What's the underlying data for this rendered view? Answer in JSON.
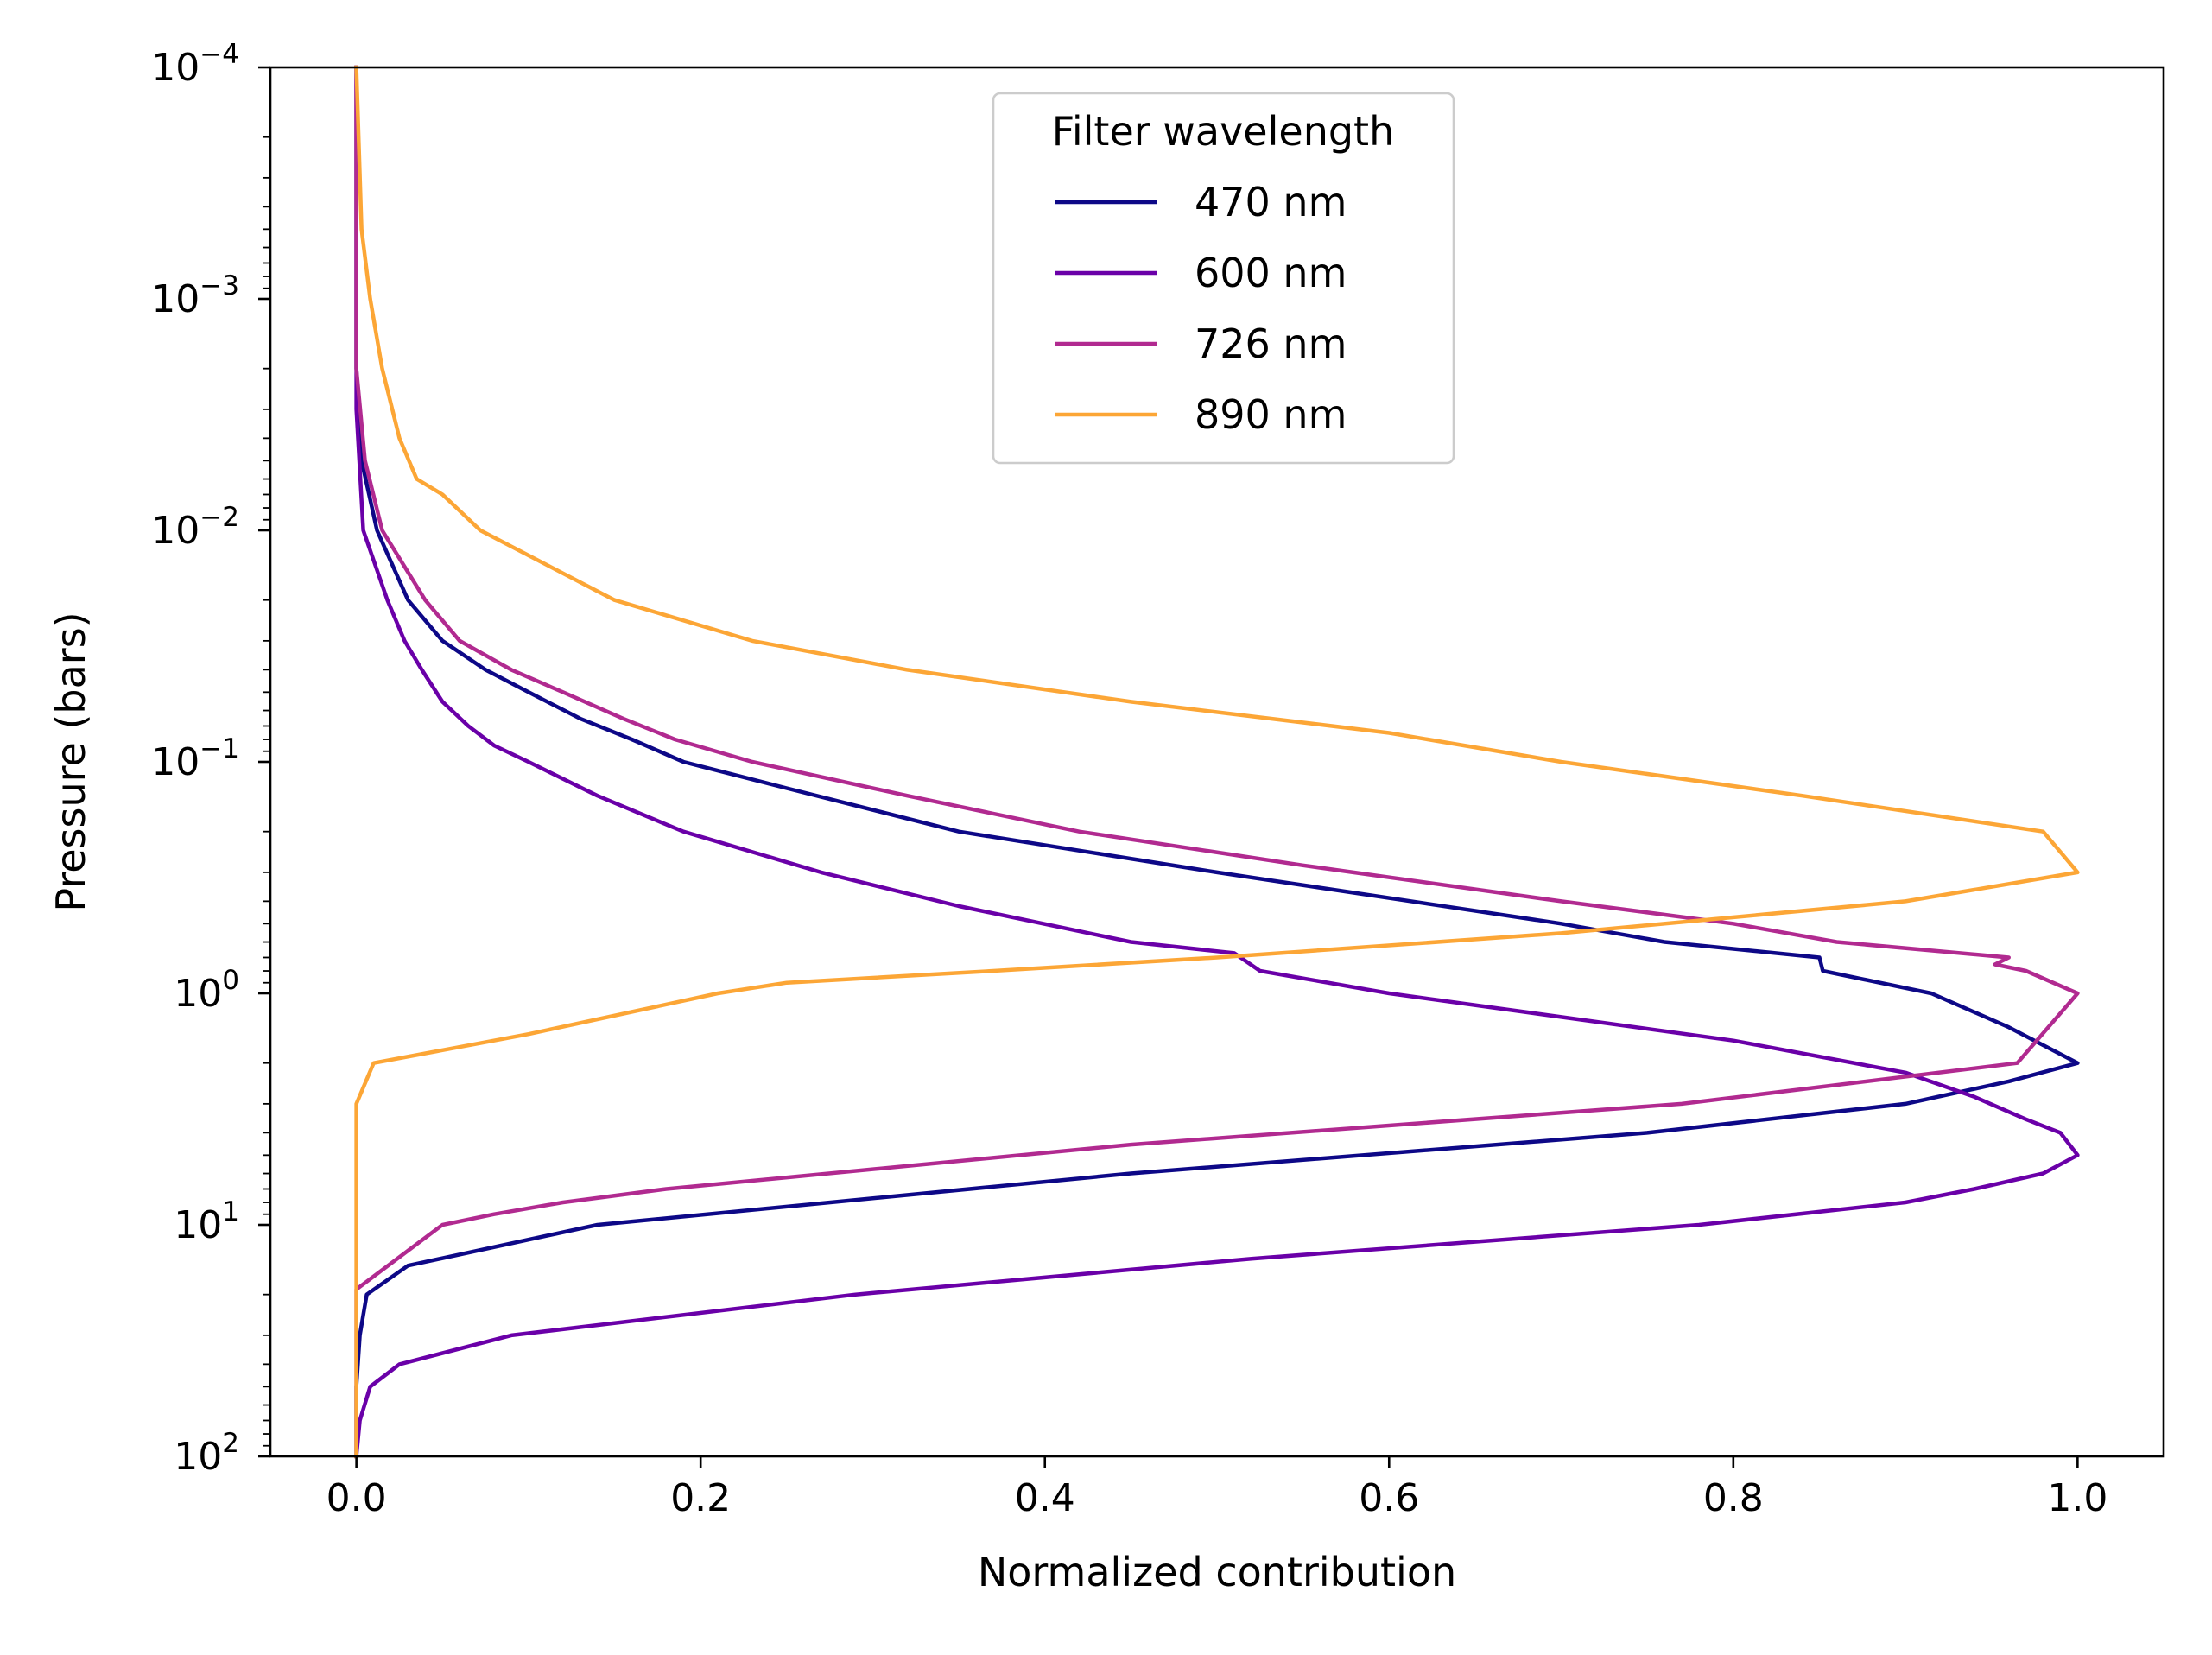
{
  "chart_data": {
    "type": "line",
    "title": "",
    "xlabel": "Normalized contribution",
    "ylabel": "Pressure (bars)",
    "xlim": [
      -0.05,
      1.05
    ],
    "ylim": [
      0.0001,
      100
    ],
    "yscale": "log",
    "y_inverted": true,
    "x_ticks": [
      {
        "value": 0.0,
        "label": "0.0"
      },
      {
        "value": 0.2,
        "label": "0.2"
      },
      {
        "value": 0.4,
        "label": "0.4"
      },
      {
        "value": 0.6,
        "label": "0.6"
      },
      {
        "value": 0.8,
        "label": "0.8"
      },
      {
        "value": 1.0,
        "label": "1.0"
      }
    ],
    "y_ticks": [
      {
        "exp": -4,
        "base": "10",
        "sup": "−4"
      },
      {
        "exp": -3,
        "base": "10",
        "sup": "−3"
      },
      {
        "exp": -2,
        "base": "10",
        "sup": "−2"
      },
      {
        "exp": -1,
        "base": "10",
        "sup": "−1"
      },
      {
        "exp": 0,
        "base": "10",
        "sup": "0"
      },
      {
        "exp": 1,
        "base": "10",
        "sup": "1"
      },
      {
        "exp": 2,
        "base": "10",
        "sup": "2"
      }
    ],
    "legend": {
      "title": "Filter wavelength",
      "position": "top-center"
    },
    "series": [
      {
        "name": "470 nm",
        "color": "#0d0887",
        "points": [
          [
            0.0,
            0.0001
          ],
          [
            0.0,
            0.002
          ],
          [
            0.003,
            0.005
          ],
          [
            0.012,
            0.01
          ],
          [
            0.03,
            0.02
          ],
          [
            0.05,
            0.03
          ],
          [
            0.075,
            0.04
          ],
          [
            0.1,
            0.05
          ],
          [
            0.13,
            0.065
          ],
          [
            0.16,
            0.08
          ],
          [
            0.19,
            0.1
          ],
          [
            0.25,
            0.13
          ],
          [
            0.35,
            0.2
          ],
          [
            0.5,
            0.3
          ],
          [
            0.7,
            0.5
          ],
          [
            0.76,
            0.6
          ],
          [
            0.85,
            0.7
          ],
          [
            0.852,
            0.8
          ],
          [
            0.915,
            1.0
          ],
          [
            0.96,
            1.4
          ],
          [
            1.0,
            2.0
          ],
          [
            0.96,
            2.4
          ],
          [
            0.9,
            3.0
          ],
          [
            0.75,
            4.0
          ],
          [
            0.45,
            6.0
          ],
          [
            0.14,
            10.0
          ],
          [
            0.03,
            15.0
          ],
          [
            0.006,
            20.0
          ],
          [
            0.002,
            30.0
          ],
          [
            0.0,
            50.0
          ],
          [
            0.0,
            100.0
          ]
        ]
      },
      {
        "name": "600 nm",
        "color": "#6a00a8",
        "points": [
          [
            0.0,
            0.0001
          ],
          [
            0.0,
            0.003
          ],
          [
            0.004,
            0.01
          ],
          [
            0.018,
            0.02
          ],
          [
            0.028,
            0.03
          ],
          [
            0.038,
            0.04
          ],
          [
            0.05,
            0.055
          ],
          [
            0.065,
            0.07
          ],
          [
            0.08,
            0.085
          ],
          [
            0.1,
            0.1
          ],
          [
            0.14,
            0.14
          ],
          [
            0.19,
            0.2
          ],
          [
            0.27,
            0.3
          ],
          [
            0.35,
            0.42
          ],
          [
            0.45,
            0.6
          ],
          [
            0.51,
            0.67
          ],
          [
            0.525,
            0.8
          ],
          [
            0.6,
            1.0
          ],
          [
            0.8,
            1.6
          ],
          [
            0.9,
            2.2
          ],
          [
            0.94,
            2.8
          ],
          [
            0.97,
            3.5
          ],
          [
            0.99,
            4.0
          ],
          [
            1.0,
            5.0
          ],
          [
            0.98,
            6.0
          ],
          [
            0.94,
            7.0
          ],
          [
            0.9,
            8.0
          ],
          [
            0.78,
            10.0
          ],
          [
            0.52,
            14.0
          ],
          [
            0.29,
            20.0
          ],
          [
            0.09,
            30.0
          ],
          [
            0.025,
            40.0
          ],
          [
            0.008,
            50.0
          ],
          [
            0.002,
            70.0
          ],
          [
            0.0,
            100.0
          ]
        ]
      },
      {
        "name": "726 nm",
        "color": "#b12a90",
        "points": [
          [
            0.0,
            0.0001
          ],
          [
            0.0,
            0.002
          ],
          [
            0.005,
            0.005
          ],
          [
            0.015,
            0.01
          ],
          [
            0.04,
            0.02
          ],
          [
            0.06,
            0.03
          ],
          [
            0.09,
            0.04
          ],
          [
            0.12,
            0.05
          ],
          [
            0.155,
            0.065
          ],
          [
            0.185,
            0.08
          ],
          [
            0.23,
            0.1
          ],
          [
            0.32,
            0.14
          ],
          [
            0.42,
            0.2
          ],
          [
            0.55,
            0.28
          ],
          [
            0.7,
            0.4
          ],
          [
            0.8,
            0.5
          ],
          [
            0.86,
            0.6
          ],
          [
            0.96,
            0.7
          ],
          [
            0.952,
            0.75
          ],
          [
            0.97,
            0.8
          ],
          [
            1.0,
            1.0
          ],
          [
            0.965,
            2.0
          ],
          [
            0.77,
            3.0
          ],
          [
            0.45,
            4.5
          ],
          [
            0.18,
            7.0
          ],
          [
            0.12,
            8.0
          ],
          [
            0.08,
            9.0
          ],
          [
            0.05,
            10.0
          ],
          [
            0.0,
            19.0
          ],
          [
            0.0,
            100.0
          ]
        ]
      },
      {
        "name": "890 nm",
        "color": "#fca636",
        "points": [
          [
            0.0,
            0.0001
          ],
          [
            0.003,
            0.0005
          ],
          [
            0.008,
            0.001
          ],
          [
            0.015,
            0.002
          ],
          [
            0.025,
            0.004
          ],
          [
            0.035,
            0.006
          ],
          [
            0.05,
            0.007
          ],
          [
            0.072,
            0.01
          ],
          [
            0.15,
            0.02
          ],
          [
            0.23,
            0.03
          ],
          [
            0.32,
            0.04
          ],
          [
            0.45,
            0.055
          ],
          [
            0.6,
            0.075
          ],
          [
            0.7,
            0.1
          ],
          [
            0.84,
            0.14
          ],
          [
            0.98,
            0.2
          ],
          [
            1.0,
            0.3
          ],
          [
            0.9,
            0.4
          ],
          [
            0.7,
            0.55
          ],
          [
            0.5,
            0.7
          ],
          [
            0.37,
            0.8
          ],
          [
            0.25,
            0.9
          ],
          [
            0.21,
            1.0
          ],
          [
            0.1,
            1.5
          ],
          [
            0.01,
            2.0
          ],
          [
            0.0,
            3.0
          ],
          [
            0.0,
            100.0
          ]
        ]
      }
    ]
  }
}
